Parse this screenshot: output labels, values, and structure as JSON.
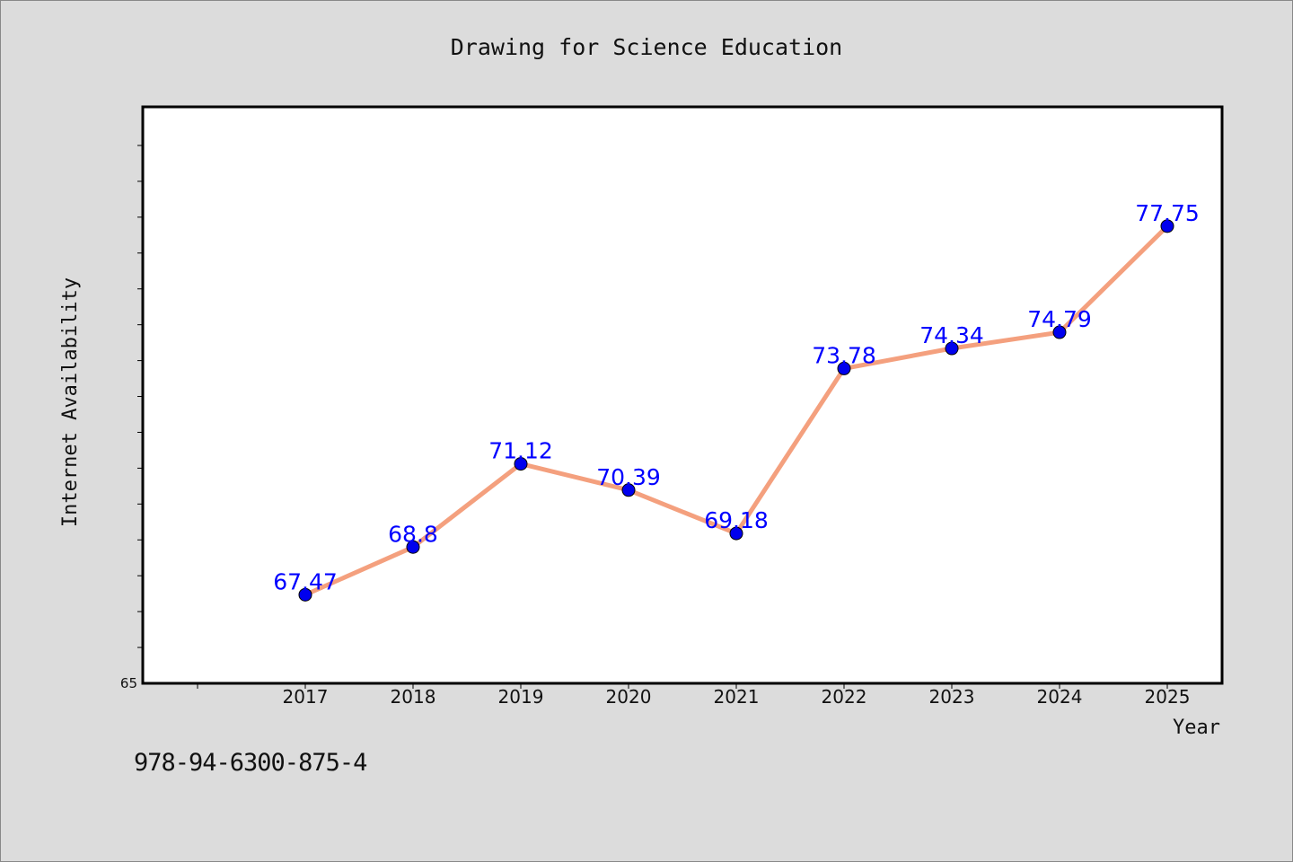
{
  "chart_data": {
    "type": "line",
    "title": "Drawing for Science Education",
    "xlabel": "Year",
    "ylabel": "Internet Availability",
    "categories": [
      "2017",
      "2018",
      "2019",
      "2020",
      "2021",
      "2022",
      "2023",
      "2024",
      "2025"
    ],
    "series": [
      {
        "values": [
          67.47,
          68.8,
          71.12,
          70.39,
          69.18,
          73.78,
          74.34,
          74.79,
          77.75
        ],
        "labels": [
          "67.47",
          "68.8",
          "71.12",
          "70.39",
          "69.18",
          "73.78",
          "74.34",
          "74.79",
          "77.75"
        ]
      }
    ],
    "ylim": [
      65,
      80
    ],
    "y_tick_labels": [
      "65"
    ],
    "grid": false,
    "legend": "none",
    "colors": {
      "line": "#f4a07e",
      "marker": "#0000ee",
      "data_label": "#0000ff",
      "plot_background": "#ffffff",
      "figure_background": "#dcdcdc"
    }
  },
  "footer": {
    "isbn": "978-94-6300-875-4"
  }
}
